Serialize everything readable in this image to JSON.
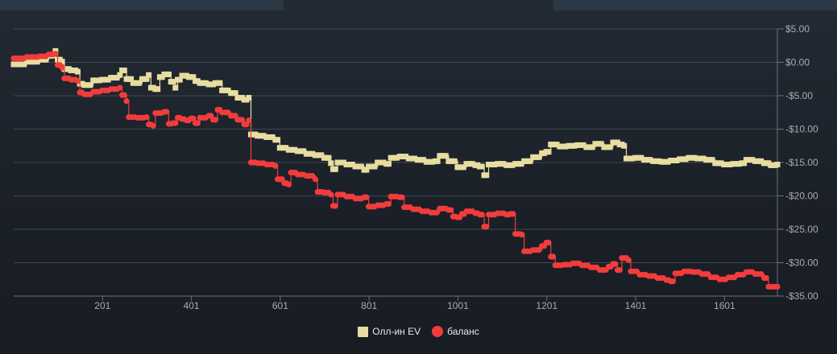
{
  "chart_data": {
    "type": "line",
    "title": "",
    "xlabel": "",
    "ylabel": "",
    "xlim": [
      1,
      1720
    ],
    "ylim": [
      -35,
      5
    ],
    "x_tick_labels": [
      "201",
      "401",
      "601",
      "801",
      "1001",
      "1201",
      "1401",
      "1601"
    ],
    "x_tick_values": [
      201,
      401,
      601,
      801,
      1001,
      1201,
      1401,
      1601
    ],
    "y_tick_labels": [
      "$5.00",
      "$0.00",
      "-$5.00",
      "-$10.00",
      "-$15.00",
      "-$20.00",
      "-$25.00",
      "-$30.00",
      "-$35.00"
    ],
    "y_tick_values": [
      5,
      0,
      -5,
      -10,
      -15,
      -20,
      -25,
      -30,
      -35
    ],
    "grid": true,
    "legend_position": "bottom",
    "series": [
      {
        "name": "Олл-ин EV",
        "color": "#e8dda0",
        "marker": "square",
        "points": [
          [
            1,
            -0.3
          ],
          [
            30,
            0.1
          ],
          [
            60,
            0.4
          ],
          [
            80,
            1.0
          ],
          [
            95,
            1.7
          ],
          [
            100,
            0.4
          ],
          [
            110,
            0.1
          ],
          [
            115,
            -1.0
          ],
          [
            130,
            -1.2
          ],
          [
            145,
            -1.4
          ],
          [
            150,
            -3.2
          ],
          [
            160,
            -3.4
          ],
          [
            180,
            -2.7
          ],
          [
            200,
            -2.6
          ],
          [
            220,
            -2.3
          ],
          [
            240,
            -1.9
          ],
          [
            245,
            -1.2
          ],
          [
            255,
            -2.5
          ],
          [
            270,
            -3.1
          ],
          [
            290,
            -2.5
          ],
          [
            305,
            -1.9
          ],
          [
            310,
            -3.8
          ],
          [
            320,
            -4.0
          ],
          [
            330,
            -2.2
          ],
          [
            340,
            -1.8
          ],
          [
            355,
            -2.9
          ],
          [
            365,
            -3.8
          ],
          [
            370,
            -2.6
          ],
          [
            380,
            -2.0
          ],
          [
            395,
            -2.2
          ],
          [
            410,
            -2.8
          ],
          [
            420,
            -3.1
          ],
          [
            440,
            -3.3
          ],
          [
            455,
            -3.1
          ],
          [
            470,
            -4.2
          ],
          [
            490,
            -4.6
          ],
          [
            505,
            -5.3
          ],
          [
            520,
            -5.6
          ],
          [
            530,
            -5.3
          ],
          [
            535,
            -10.8
          ],
          [
            550,
            -11.0
          ],
          [
            570,
            -11.2
          ],
          [
            590,
            -11.6
          ],
          [
            600,
            -12.8
          ],
          [
            620,
            -13.1
          ],
          [
            640,
            -13.3
          ],
          [
            660,
            -13.7
          ],
          [
            680,
            -13.9
          ],
          [
            700,
            -14.3
          ],
          [
            715,
            -15.1
          ],
          [
            720,
            -16.0
          ],
          [
            730,
            -15.0
          ],
          [
            750,
            -15.3
          ],
          [
            770,
            -15.6
          ],
          [
            790,
            -16.1
          ],
          [
            800,
            -15.6
          ],
          [
            820,
            -15.0
          ],
          [
            840,
            -15.2
          ],
          [
            850,
            -14.3
          ],
          [
            870,
            -14.1
          ],
          [
            890,
            -14.4
          ],
          [
            910,
            -14.6
          ],
          [
            930,
            -14.9
          ],
          [
            950,
            -14.8
          ],
          [
            960,
            -14.0
          ],
          [
            980,
            -14.8
          ],
          [
            1000,
            -15.7
          ],
          [
            1020,
            -15.2
          ],
          [
            1040,
            -15.4
          ],
          [
            1050,
            -15.6
          ],
          [
            1060,
            -16.9
          ],
          [
            1070,
            -15.3
          ],
          [
            1090,
            -15.2
          ],
          [
            1110,
            -15.4
          ],
          [
            1130,
            -15.2
          ],
          [
            1150,
            -14.8
          ],
          [
            1170,
            -14.2
          ],
          [
            1190,
            -13.6
          ],
          [
            1200,
            -13.4
          ],
          [
            1210,
            -12.3
          ],
          [
            1230,
            -12.6
          ],
          [
            1250,
            -12.5
          ],
          [
            1270,
            -12.4
          ],
          [
            1290,
            -12.7
          ],
          [
            1310,
            -12.2
          ],
          [
            1330,
            -12.7
          ],
          [
            1350,
            -12.0
          ],
          [
            1365,
            -12.3
          ],
          [
            1375,
            -12.5
          ],
          [
            1380,
            -14.4
          ],
          [
            1400,
            -14.3
          ],
          [
            1420,
            -14.6
          ],
          [
            1440,
            -14.8
          ],
          [
            1460,
            -14.9
          ],
          [
            1480,
            -14.7
          ],
          [
            1500,
            -14.5
          ],
          [
            1520,
            -14.3
          ],
          [
            1540,
            -14.4
          ],
          [
            1560,
            -14.6
          ],
          [
            1580,
            -15.1
          ],
          [
            1600,
            -15.3
          ],
          [
            1620,
            -15.2
          ],
          [
            1640,
            -15.1
          ],
          [
            1650,
            -14.6
          ],
          [
            1670,
            -14.8
          ],
          [
            1690,
            -15.1
          ],
          [
            1705,
            -15.4
          ],
          [
            1720,
            -15.3
          ]
        ]
      },
      {
        "name": "баланс",
        "color": "#f23c3c",
        "marker": "circle",
        "points": [
          [
            1,
            0.6
          ],
          [
            30,
            0.8
          ],
          [
            60,
            0.9
          ],
          [
            80,
            1.2
          ],
          [
            95,
            1.3
          ],
          [
            100,
            -0.4
          ],
          [
            110,
            -0.8
          ],
          [
            115,
            -2.4
          ],
          [
            130,
            -2.6
          ],
          [
            145,
            -2.8
          ],
          [
            150,
            -4.5
          ],
          [
            160,
            -4.8
          ],
          [
            180,
            -4.4
          ],
          [
            200,
            -4.2
          ],
          [
            220,
            -4.0
          ],
          [
            240,
            -3.8
          ],
          [
            245,
            -4.9
          ],
          [
            255,
            -5.8
          ],
          [
            260,
            -8.2
          ],
          [
            280,
            -8.3
          ],
          [
            300,
            -8.2
          ],
          [
            305,
            -9.3
          ],
          [
            315,
            -9.5
          ],
          [
            320,
            -7.6
          ],
          [
            340,
            -7.4
          ],
          [
            350,
            -9.2
          ],
          [
            360,
            -9.1
          ],
          [
            370,
            -8.3
          ],
          [
            380,
            -8.5
          ],
          [
            390,
            -8.7
          ],
          [
            400,
            -8.4
          ],
          [
            410,
            -9.1
          ],
          [
            420,
            -8.3
          ],
          [
            440,
            -8.0
          ],
          [
            450,
            -8.6
          ],
          [
            460,
            -7.1
          ],
          [
            470,
            -7.5
          ],
          [
            490,
            -8.0
          ],
          [
            505,
            -8.6
          ],
          [
            520,
            -9.3
          ],
          [
            530,
            -8.7
          ],
          [
            535,
            -15.0
          ],
          [
            550,
            -15.1
          ],
          [
            570,
            -15.3
          ],
          [
            590,
            -15.5
          ],
          [
            595,
            -17.5
          ],
          [
            610,
            -18.1
          ],
          [
            620,
            -18.3
          ],
          [
            625,
            -16.5
          ],
          [
            640,
            -16.8
          ],
          [
            660,
            -17.0
          ],
          [
            680,
            -17.5
          ],
          [
            685,
            -19.4
          ],
          [
            700,
            -19.5
          ],
          [
            715,
            -19.8
          ],
          [
            720,
            -21.5
          ],
          [
            730,
            -19.8
          ],
          [
            750,
            -20.1
          ],
          [
            770,
            -20.4
          ],
          [
            790,
            -20.2
          ],
          [
            800,
            -21.6
          ],
          [
            820,
            -21.4
          ],
          [
            840,
            -21.2
          ],
          [
            850,
            -20.1
          ],
          [
            870,
            -20.2
          ],
          [
            880,
            -21.7
          ],
          [
            900,
            -22.0
          ],
          [
            920,
            -22.3
          ],
          [
            940,
            -22.5
          ],
          [
            960,
            -21.9
          ],
          [
            980,
            -22.1
          ],
          [
            990,
            -23.1
          ],
          [
            1000,
            -23.2
          ],
          [
            1010,
            -22.7
          ],
          [
            1020,
            -22.3
          ],
          [
            1040,
            -22.6
          ],
          [
            1050,
            -22.8
          ],
          [
            1060,
            -24.6
          ],
          [
            1070,
            -22.8
          ],
          [
            1090,
            -22.6
          ],
          [
            1110,
            -22.8
          ],
          [
            1120,
            -22.7
          ],
          [
            1130,
            -25.7
          ],
          [
            1145,
            -25.8
          ],
          [
            1150,
            -28.3
          ],
          [
            1170,
            -28.1
          ],
          [
            1190,
            -27.5
          ],
          [
            1200,
            -27.0
          ],
          [
            1210,
            -29.1
          ],
          [
            1220,
            -30.4
          ],
          [
            1240,
            -30.3
          ],
          [
            1260,
            -30.1
          ],
          [
            1280,
            -30.4
          ],
          [
            1300,
            -30.7
          ],
          [
            1320,
            -31.1
          ],
          [
            1340,
            -30.6
          ],
          [
            1350,
            -30.2
          ],
          [
            1360,
            -31.1
          ],
          [
            1370,
            -29.3
          ],
          [
            1385,
            -29.6
          ],
          [
            1390,
            -31.3
          ],
          [
            1410,
            -31.8
          ],
          [
            1430,
            -32.0
          ],
          [
            1450,
            -32.3
          ],
          [
            1470,
            -32.6
          ],
          [
            1480,
            -32.8
          ],
          [
            1490,
            -31.6
          ],
          [
            1510,
            -31.3
          ],
          [
            1530,
            -31.4
          ],
          [
            1550,
            -31.7
          ],
          [
            1570,
            -32.2
          ],
          [
            1590,
            -32.5
          ],
          [
            1610,
            -32.2
          ],
          [
            1630,
            -31.8
          ],
          [
            1650,
            -31.4
          ],
          [
            1670,
            -31.7
          ],
          [
            1690,
            -32.3
          ],
          [
            1700,
            -33.6
          ],
          [
            1720,
            -33.6
          ]
        ]
      }
    ]
  }
}
